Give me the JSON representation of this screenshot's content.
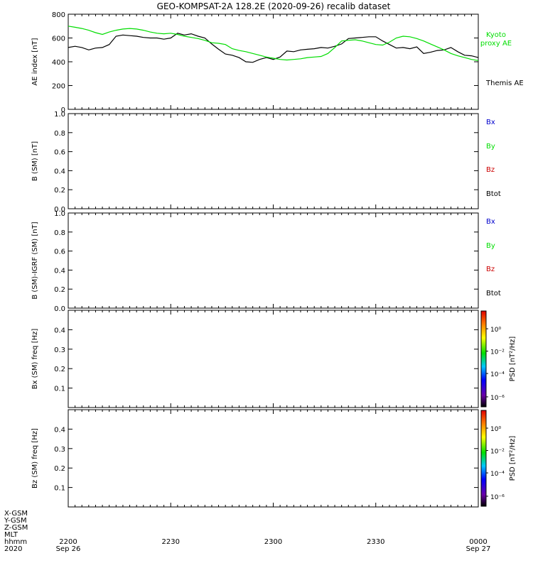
{
  "title": "GEO-KOMPSAT-2A 128.2E (2020-09-26) recalib dataset",
  "x_axis": {
    "tick_labels": [
      "2200",
      "2230",
      "2300",
      "2330",
      "0000"
    ],
    "date_labels": [
      "Sep 26",
      "Sep 27"
    ],
    "row_labels": [
      "X-GSM",
      "Y-GSM",
      "Z-GSM",
      "MLT",
      "hhmm",
      "2020"
    ]
  },
  "colorbar": {
    "label": "PSD [nT²/Hz]",
    "tick_labels": [
      "10⁰",
      "10⁻²",
      "10⁻⁴",
      "10⁻⁶"
    ]
  },
  "colors": {
    "black": "#000000",
    "green": "#00dd00",
    "blue": "#0000cc",
    "red": "#cc0000"
  },
  "chart_data": [
    {
      "type": "line",
      "ylabel": "AE index [nT]",
      "ylim": [
        0,
        800
      ],
      "yticks": [
        0,
        200,
        400,
        600,
        800
      ],
      "xlim": [
        "22:00",
        "24:00"
      ],
      "series": [
        {
          "name": "Themis AE",
          "color": "#000000",
          "x": [
            "22:00",
            "22:02",
            "22:04",
            "22:06",
            "22:08",
            "22:10",
            "22:12",
            "22:14",
            "22:16",
            "22:18",
            "22:20",
            "22:22",
            "22:24",
            "22:26",
            "22:28",
            "22:30",
            "22:32",
            "22:34",
            "22:36",
            "22:38",
            "22:40",
            "22:42",
            "22:44",
            "22:46",
            "22:48",
            "22:50",
            "22:52",
            "22:54",
            "22:56",
            "22:58",
            "23:00",
            "23:02",
            "23:04",
            "23:06",
            "23:08",
            "23:10",
            "23:12",
            "23:14",
            "23:16",
            "23:18",
            "23:20",
            "23:22",
            "23:24",
            "23:26",
            "23:28",
            "23:30",
            "23:32",
            "23:34",
            "23:36",
            "23:38",
            "23:40",
            "23:42",
            "23:44",
            "23:46",
            "23:48",
            "23:50",
            "23:52",
            "23:54",
            "23:56",
            "23:58",
            "24:00"
          ],
          "values": [
            520,
            530,
            520,
            500,
            515,
            520,
            545,
            615,
            625,
            620,
            615,
            605,
            600,
            600,
            590,
            600,
            640,
            625,
            635,
            615,
            600,
            550,
            505,
            465,
            455,
            435,
            400,
            395,
            420,
            435,
            420,
            440,
            490,
            485,
            500,
            505,
            510,
            520,
            515,
            530,
            550,
            595,
            600,
            605,
            610,
            610,
            575,
            545,
            515,
            520,
            510,
            525,
            470,
            480,
            495,
            500,
            520,
            485,
            455,
            450,
            435
          ]
        },
        {
          "name": "Kyoto proxy AE",
          "color": "#00dd00",
          "x": [
            "22:00",
            "22:02",
            "22:04",
            "22:06",
            "22:08",
            "22:10",
            "22:12",
            "22:14",
            "22:16",
            "22:18",
            "22:20",
            "22:22",
            "22:24",
            "22:26",
            "22:28",
            "22:30",
            "22:32",
            "22:34",
            "22:36",
            "22:38",
            "22:40",
            "22:42",
            "22:44",
            "22:46",
            "22:48",
            "22:50",
            "22:52",
            "22:54",
            "22:56",
            "22:58",
            "23:00",
            "23:02",
            "23:04",
            "23:06",
            "23:08",
            "23:10",
            "23:12",
            "23:14",
            "23:16",
            "23:18",
            "23:20",
            "23:22",
            "23:24",
            "23:26",
            "23:28",
            "23:30",
            "23:32",
            "23:34",
            "23:36",
            "23:38",
            "23:40",
            "23:42",
            "23:44",
            "23:46",
            "23:48",
            "23:50",
            "23:52",
            "23:54",
            "23:56",
            "23:58",
            "24:00"
          ],
          "values": [
            700,
            690,
            680,
            665,
            645,
            630,
            650,
            665,
            675,
            680,
            675,
            665,
            650,
            640,
            635,
            640,
            630,
            615,
            605,
            595,
            580,
            560,
            555,
            545,
            510,
            495,
            485,
            470,
            455,
            440,
            430,
            420,
            415,
            420,
            425,
            435,
            440,
            445,
            470,
            520,
            575,
            580,
            585,
            575,
            560,
            545,
            540,
            565,
            600,
            615,
            610,
            595,
            575,
            550,
            525,
            500,
            470,
            450,
            435,
            420,
            410
          ]
        }
      ]
    },
    {
      "type": "line",
      "ylabel": "B (SM) [nT]",
      "ylim": [
        0,
        1
      ],
      "yticks": [
        0.0,
        0.2,
        0.4,
        0.6,
        0.8,
        1.0
      ],
      "series": [
        {
          "name": "Bx",
          "color": "#0000cc",
          "values": []
        },
        {
          "name": "By",
          "color": "#00dd00",
          "values": []
        },
        {
          "name": "Bz",
          "color": "#cc0000",
          "values": []
        },
        {
          "name": "Btot",
          "color": "#000000",
          "values": []
        }
      ]
    },
    {
      "type": "line",
      "ylabel": "B (SM)-IGRF (SM) [nT]",
      "ylim": [
        0,
        1
      ],
      "yticks": [
        0.0,
        0.2,
        0.4,
        0.6,
        0.8,
        1.0
      ],
      "series": [
        {
          "name": "Bx",
          "color": "#0000cc",
          "values": []
        },
        {
          "name": "By",
          "color": "#00dd00",
          "values": []
        },
        {
          "name": "Bz",
          "color": "#cc0000",
          "values": []
        },
        {
          "name": "Btot",
          "color": "#000000",
          "values": []
        }
      ]
    },
    {
      "type": "heatmap",
      "ylabel": "Bx (SM) freq [Hz]",
      "ylim": [
        0,
        0.5
      ],
      "yticks": [
        0.1,
        0.2,
        0.3,
        0.4
      ],
      "values": []
    },
    {
      "type": "heatmap",
      "ylabel": "Bz (SM) freq [Hz]",
      "ylim": [
        0,
        0.5
      ],
      "yticks": [
        0.1,
        0.2,
        0.3,
        0.4
      ],
      "values": []
    }
  ]
}
